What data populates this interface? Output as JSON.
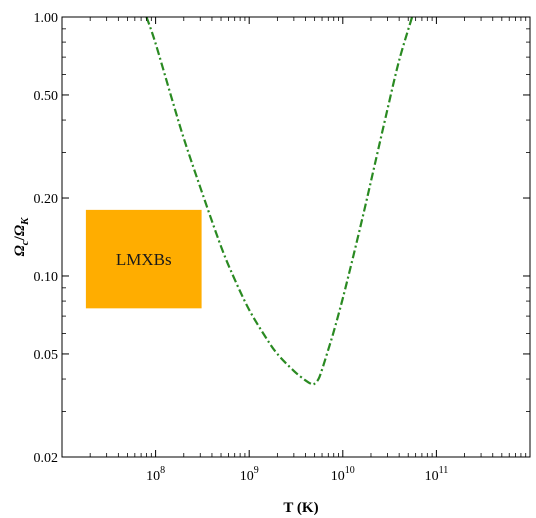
{
  "chart_data": {
    "type": "line",
    "xlabel": "T (K)",
    "ylabel": "Ω_c / Ω_K",
    "ylabel_parts": {
      "main1": "Ω",
      "sub1": "c",
      "sep": "/",
      "main2": "Ω",
      "sub2": "K"
    },
    "xscale": "log",
    "yscale": "log",
    "xlim": [
      10000000,
      1000000000000
    ],
    "ylim": [
      0.02,
      1.0
    ],
    "grid": false,
    "xticks": [
      {
        "value": 100000000,
        "base": "10",
        "exp": "8"
      },
      {
        "value": 1000000000,
        "base": "10",
        "exp": "9"
      },
      {
        "value": 10000000000,
        "base": "10",
        "exp": "10"
      },
      {
        "value": 100000000000,
        "base": "10",
        "exp": "11"
      }
    ],
    "yticks": [
      {
        "value": 0.02,
        "label": "0.02"
      },
      {
        "value": 0.05,
        "label": "0.05"
      },
      {
        "value": 0.1,
        "label": "0.10"
      },
      {
        "value": 0.2,
        "label": "0.20"
      },
      {
        "value": 0.5,
        "label": "0.50"
      },
      {
        "value": 1.0,
        "label": "1.00"
      }
    ],
    "series": [
      {
        "color": "#2a8a22",
        "dash": "dash-dot",
        "x": [
          80000000,
          100000000,
          150000000,
          200000000,
          300000000,
          500000000,
          700000000,
          1000000000,
          1500000000,
          2000000000,
          3000000000,
          4000000000,
          4700000000,
          5000000000,
          5500000000,
          6000000000,
          7000000000,
          8000000000,
          10000000000,
          13000000000,
          17000000000,
          22000000000,
          30000000000,
          40000000000,
          55000000000
        ],
        "y": [
          1.0,
          0.79,
          0.48,
          0.34,
          0.22,
          0.13,
          0.097,
          0.074,
          0.058,
          0.05,
          0.043,
          0.0395,
          0.0382,
          0.0384,
          0.04,
          0.0435,
          0.052,
          0.061,
          0.082,
          0.12,
          0.18,
          0.27,
          0.44,
          0.68,
          1.0
        ]
      }
    ],
    "annotations": [
      {
        "label": "LMXBs",
        "color": "#ffad00",
        "x_range": [
          18000000,
          310000000
        ],
        "y_range": [
          0.075,
          0.18
        ]
      }
    ]
  }
}
